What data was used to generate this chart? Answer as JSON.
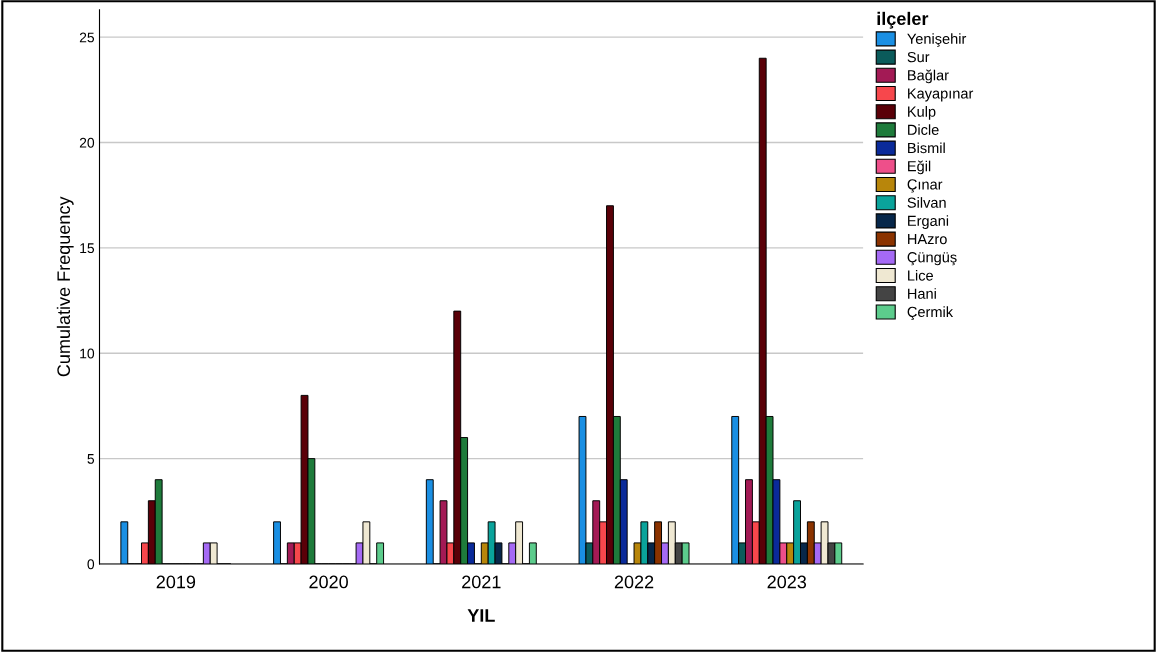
{
  "chart_data": {
    "type": "bar",
    "xlabel": "YIL",
    "ylabel": "Cumulative Frequency",
    "legend_title": "ilçeler",
    "categories": [
      "2019",
      "2020",
      "2021",
      "2022",
      "2023"
    ],
    "series": [
      {
        "name": "Yenişehir",
        "color": "#1a8fe3",
        "values": [
          2,
          2,
          4,
          7,
          7
        ]
      },
      {
        "name": "Sur",
        "color": "#0b5b5b",
        "values": [
          0,
          0,
          0,
          1,
          1
        ]
      },
      {
        "name": "Bağlar",
        "color": "#a31a55",
        "values": [
          0,
          1,
          3,
          3,
          4
        ]
      },
      {
        "name": "Kayapınar",
        "color": "#f7474c",
        "values": [
          1,
          1,
          1,
          2,
          2
        ]
      },
      {
        "name": "Kulp",
        "color": "#5a0008",
        "values": [
          3,
          8,
          12,
          17,
          24
        ]
      },
      {
        "name": "Dicle",
        "color": "#1e7b3b",
        "values": [
          4,
          5,
          6,
          7,
          7
        ]
      },
      {
        "name": "Bismil",
        "color": "#0a2a9a",
        "values": [
          0,
          0,
          1,
          4,
          4
        ]
      },
      {
        "name": "Eğil",
        "color": "#ee4f8a",
        "values": [
          0,
          0,
          0,
          0,
          1
        ]
      },
      {
        "name": "Çınar",
        "color": "#b8860b",
        "values": [
          0,
          0,
          1,
          1,
          1
        ]
      },
      {
        "name": "Silvan",
        "color": "#0aa39b",
        "values": [
          0,
          0,
          2,
          2,
          3
        ]
      },
      {
        "name": "Ergani",
        "color": "#07274a",
        "values": [
          0,
          0,
          1,
          1,
          1
        ]
      },
      {
        "name": "HAzro",
        "color": "#8b3300",
        "values": [
          0,
          0,
          0,
          2,
          2
        ]
      },
      {
        "name": "Çüngüş",
        "color": "#a56af5",
        "values": [
          1,
          1,
          1,
          1,
          1
        ]
      },
      {
        "name": "Lice",
        "color": "#efe8d2",
        "values": [
          1,
          2,
          2,
          2,
          2
        ]
      },
      {
        "name": "Hani",
        "color": "#444444",
        "values": [
          0,
          0,
          0,
          1,
          1
        ]
      },
      {
        "name": "Çermik",
        "color": "#5ccc8c",
        "values": [
          0,
          1,
          1,
          1,
          1
        ]
      }
    ],
    "ylim": [
      0,
      26.3
    ],
    "yticks": [
      0,
      5,
      10,
      15,
      20,
      25
    ],
    "grid": "y",
    "legend": "right"
  }
}
